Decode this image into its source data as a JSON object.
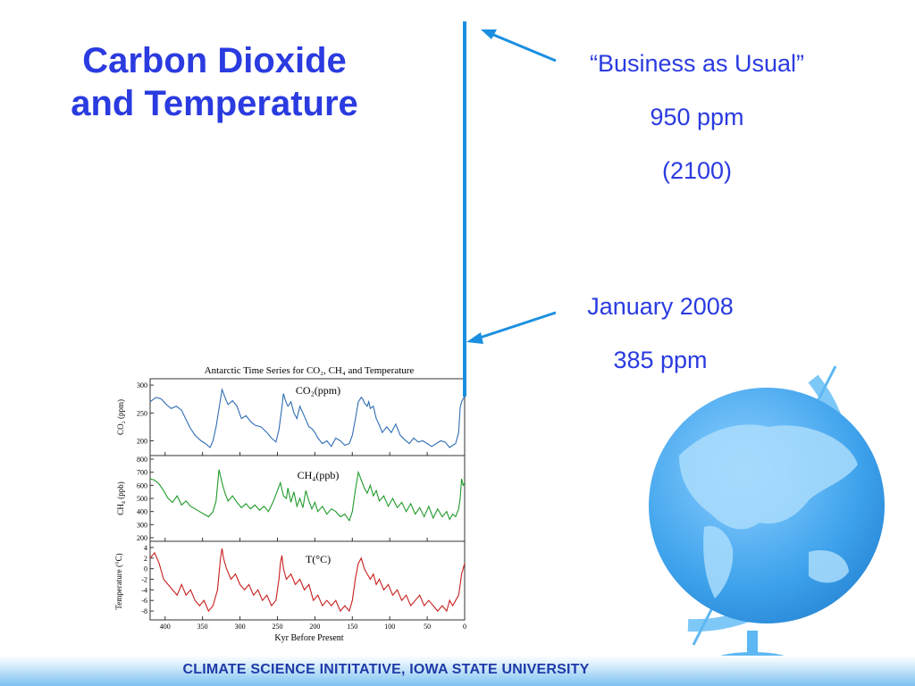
{
  "slide": {
    "title_line1": "Carbon Dioxide",
    "title_line2": "and Temperature",
    "footer": "CLIMATE SCIENCE INITITATIVE, IOWA STATE UNIVERSITY"
  },
  "annotations": {
    "business_as_usual": {
      "label": "“Business as Usual”",
      "value": "950 ppm",
      "year": "(2100)"
    },
    "january_2008": {
      "label": "January 2008",
      "value": "385 ppm"
    }
  },
  "colors": {
    "title": "#2a3be0",
    "arrow": "#1a8fe0",
    "co2": "#2f6db3",
    "ch4": "#1f9a2a",
    "temp": "#c81e1e",
    "globe": "#4aaef0"
  },
  "icons": [
    "globe-icon",
    "arrow-icon"
  ],
  "chart_data": {
    "type": "line",
    "title": "Antarctic Time Series for CO₂, CH₄ and Temperature",
    "xlabel": "Kyr Before Present",
    "xlim": [
      420,
      0
    ],
    "x_ticks": [
      400,
      350,
      300,
      250,
      200,
      150,
      100,
      50,
      0
    ],
    "grid": false,
    "panels": [
      {
        "name": "co2",
        "panel_label": "CO₂(ppm)",
        "ylabel": "CO₂ (ppm)",
        "ylim": [
          180,
          305
        ],
        "y_ticks": [
          300,
          250,
          200
        ],
        "x": [
          420,
          412,
          405,
          398,
          392,
          385,
          378,
          372,
          366,
          360,
          352,
          346,
          340,
          336,
          332,
          328,
          324,
          320,
          316,
          310,
          304,
          298,
          292,
          286,
          280,
          272,
          264,
          258,
          252,
          248,
          244,
          242,
          240,
          238,
          236,
          232,
          228,
          224,
          220,
          216,
          212,
          208,
          204,
          200,
          196,
          190,
          184,
          178,
          172,
          166,
          160,
          154,
          150,
          146,
          142,
          138,
          136,
          134,
          132,
          130,
          128,
          126,
          122,
          118,
          114,
          110,
          104,
          98,
          92,
          86,
          80,
          74,
          68,
          62,
          56,
          50,
          44,
          38,
          32,
          26,
          20,
          16,
          12,
          8,
          6,
          4,
          2,
          0
        ],
        "values": [
          270,
          278,
          275,
          265,
          258,
          262,
          255,
          238,
          222,
          210,
          200,
          195,
          188,
          200,
          225,
          258,
          292,
          278,
          265,
          272,
          262,
          240,
          245,
          235,
          228,
          225,
          215,
          205,
          198,
          220,
          260,
          285,
          275,
          268,
          262,
          270,
          250,
          240,
          262,
          250,
          238,
          225,
          222,
          215,
          205,
          195,
          200,
          190,
          205,
          200,
          192,
          195,
          210,
          238,
          270,
          278,
          275,
          268,
          265,
          262,
          270,
          258,
          262,
          240,
          228,
          215,
          225,
          215,
          230,
          210,
          202,
          195,
          205,
          198,
          200,
          195,
          190,
          195,
          200,
          198,
          188,
          192,
          195,
          215,
          260,
          270,
          275,
          280
        ]
      },
      {
        "name": "ch4",
        "panel_label": "CH₄(ppb)",
        "ylabel": "CH₄ (ppb)",
        "ylim": [
          200,
          800
        ],
        "y_ticks": [
          800,
          700,
          600,
          500,
          400,
          300,
          200
        ],
        "x": [
          420,
          414,
          408,
          402,
          396,
          390,
          384,
          378,
          372,
          366,
          360,
          354,
          348,
          342,
          336,
          332,
          328,
          324,
          320,
          316,
          310,
          304,
          298,
          292,
          286,
          280,
          274,
          268,
          262,
          256,
          250,
          246,
          242,
          238,
          236,
          232,
          228,
          224,
          220,
          216,
          212,
          208,
          204,
          200,
          196,
          190,
          184,
          178,
          172,
          166,
          160,
          154,
          150,
          146,
          142,
          138,
          134,
          130,
          126,
          122,
          118,
          114,
          108,
          102,
          96,
          90,
          84,
          78,
          72,
          66,
          60,
          54,
          48,
          42,
          36,
          30,
          24,
          20,
          16,
          12,
          8,
          6,
          4,
          2,
          0
        ],
        "values": [
          650,
          640,
          610,
          560,
          500,
          470,
          520,
          450,
          480,
          440,
          420,
          400,
          380,
          360,
          400,
          480,
          720,
          620,
          540,
          480,
          520,
          470,
          430,
          460,
          420,
          450,
          410,
          440,
          400,
          470,
          560,
          620,
          520,
          500,
          580,
          470,
          550,
          440,
          500,
          430,
          560,
          480,
          420,
          470,
          400,
          440,
          380,
          420,
          400,
          360,
          380,
          330,
          400,
          560,
          700,
          640,
          580,
          540,
          600,
          520,
          560,
          480,
          520,
          440,
          500,
          430,
          470,
          400,
          460,
          380,
          430,
          360,
          440,
          350,
          420,
          360,
          400,
          340,
          380,
          360,
          420,
          500,
          650,
          600,
          620
        ]
      },
      {
        "name": "temperature",
        "panel_label": "T(°C)",
        "ylabel": "Temperature (°C)",
        "ylim": [
          -9,
          4.5
        ],
        "y_ticks": [
          4,
          2,
          0,
          -2,
          -4,
          -6,
          -8
        ],
        "x": [
          420,
          414,
          408,
          402,
          396,
          390,
          384,
          378,
          372,
          366,
          360,
          354,
          348,
          342,
          336,
          330,
          326,
          324,
          322,
          318,
          312,
          306,
          300,
          294,
          288,
          282,
          276,
          270,
          264,
          258,
          252,
          248,
          246,
          244,
          242,
          238,
          232,
          226,
          220,
          214,
          208,
          202,
          196,
          190,
          184,
          178,
          172,
          166,
          160,
          154,
          150,
          146,
          142,
          138,
          134,
          130,
          126,
          122,
          118,
          114,
          108,
          102,
          96,
          90,
          84,
          78,
          72,
          66,
          60,
          54,
          48,
          42,
          36,
          30,
          24,
          20,
          16,
          12,
          8,
          6,
          4,
          2,
          0
        ],
        "values": [
          2,
          3,
          1,
          -2,
          -3,
          -4,
          -5,
          -3,
          -5,
          -4,
          -6,
          -7,
          -6,
          -8,
          -7,
          -4,
          2,
          3.8,
          2,
          0,
          -2,
          -1,
          -3,
          -4,
          -3,
          -5,
          -4,
          -6,
          -5,
          -7,
          -6,
          -2,
          1,
          2.5,
          0,
          -2,
          -1,
          -3,
          -2,
          -4,
          -3,
          -6,
          -5,
          -7,
          -6,
          -7,
          -6,
          -8,
          -7,
          -8,
          -6,
          -2,
          1,
          2,
          0,
          -1,
          -2,
          -1,
          -3,
          -2,
          -4,
          -3,
          -5,
          -4,
          -6,
          -5,
          -7,
          -6,
          -5,
          -7,
          -6,
          -7,
          -8,
          -7,
          -8,
          -6,
          -7,
          -6,
          -5,
          -3,
          -1,
          0,
          1
        ]
      }
    ]
  }
}
